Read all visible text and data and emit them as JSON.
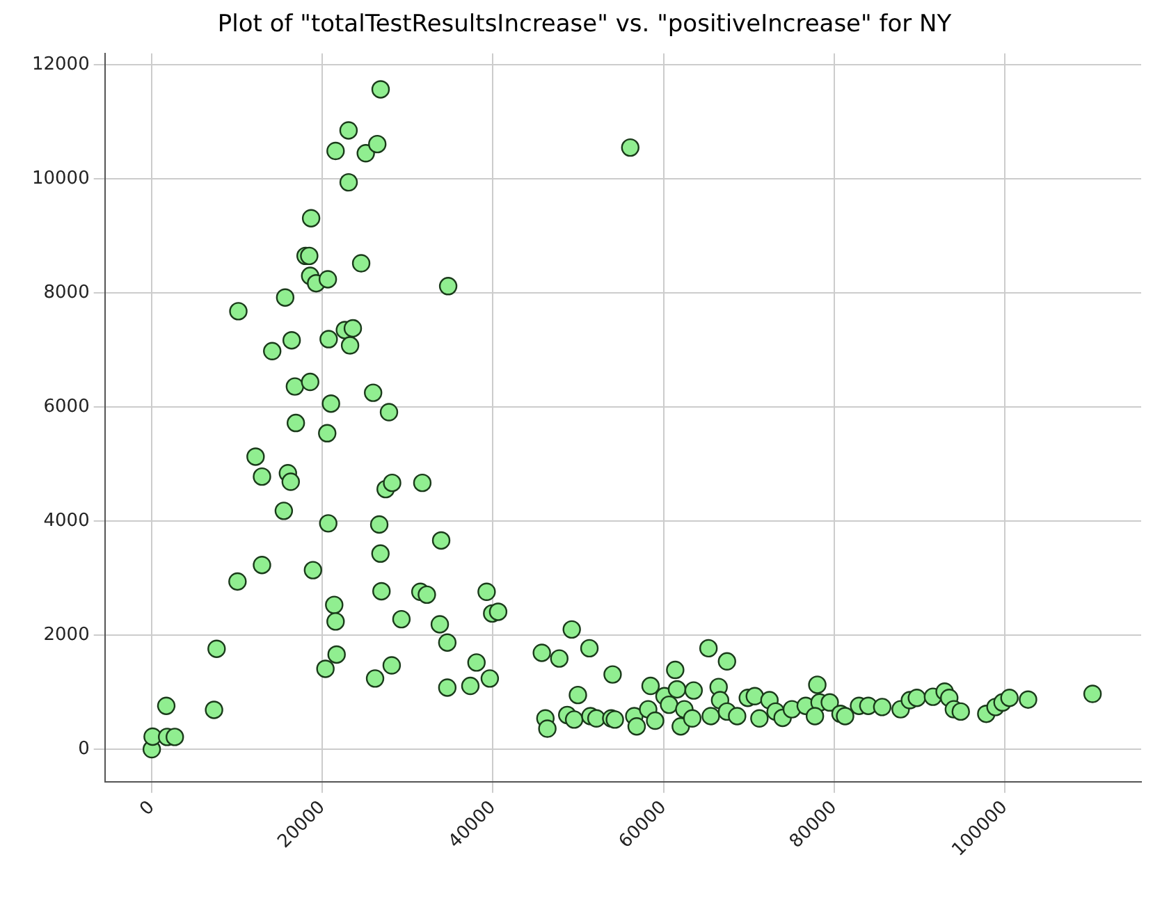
{
  "chart_data": {
    "type": "scatter",
    "title": "Plot of \"totalTestResultsIncrease\" vs. \"positiveIncrease\" for NY",
    "marker": "circle",
    "grid": true,
    "xlim": [
      -5500,
      116000
    ],
    "ylim": [
      -570,
      12200
    ],
    "xticks": [
      0,
      20000,
      40000,
      60000,
      80000,
      100000
    ],
    "yticks": [
      0,
      2000,
      4000,
      6000,
      8000,
      10000,
      12000
    ],
    "series": [
      {
        "color": "#90ee90",
        "x": [
          0,
          100,
          1700,
          1800,
          2700,
          7300,
          7600,
          16780,
          18570,
          21010,
          25950,
          27810,
          16890,
          20570,
          12170,
          12920,
          15960,
          16290,
          27420,
          28180,
          31720,
          15480,
          20690,
          26670,
          33930,
          12920,
          10050,
          18900,
          26810,
          26930,
          31490,
          32250,
          39260,
          39910,
          40610,
          21390,
          21550,
          29270,
          33770,
          34650,
          21670,
          20360,
          26180,
          28130,
          38070,
          34650,
          37350,
          39630,
          26830,
          23070,
          21550,
          25090,
          26440,
          23080,
          18680,
          18030,
          18460,
          18570,
          19270,
          20640,
          24550,
          34750,
          15640,
          10150,
          16400,
          14120,
          20740,
          22640,
          23570,
          23250,
          56100,
          45730,
          47780,
          49240,
          51310,
          54030,
          46150,
          46380,
          48710,
          49960,
          49520,
          51430,
          52130,
          53870,
          54290,
          56570,
          56850,
          58200,
          58480,
          59020,
          60110,
          60650,
          61370,
          61580,
          62020,
          62440,
          63530,
          63370,
          65270,
          67440,
          65540,
          66460,
          66630,
          67440,
          68630,
          69880,
          70700,
          71240,
          72420,
          73140,
          73960,
          75050,
          76670,
          78030,
          78290,
          77750,
          79490,
          80750,
          81290,
          82920,
          84010,
          85640,
          87800,
          88880,
          89700,
          91590,
          92960,
          93500,
          94040,
          94850,
          97840,
          98920,
          99740,
          100560,
          102740,
          110300
        ],
        "values": [
          0,
          220,
          760,
          215,
          215,
          690,
          1760,
          6360,
          6440,
          6060,
          6250,
          5910,
          5720,
          5540,
          5130,
          4780,
          4840,
          4690,
          4560,
          4670,
          4670,
          4180,
          3960,
          3940,
          3660,
          3230,
          2940,
          3140,
          3430,
          2770,
          2760,
          2710,
          2760,
          2380,
          2410,
          2530,
          2240,
          2280,
          2190,
          1870,
          1660,
          1410,
          1240,
          1470,
          1520,
          1080,
          1110,
          1240,
          11570,
          10850,
          10490,
          10450,
          10610,
          9940,
          9310,
          8650,
          8650,
          8300,
          8170,
          8240,
          8520,
          8120,
          7920,
          7680,
          7170,
          6980,
          7190,
          7350,
          7380,
          7080,
          10550,
          1690,
          1590,
          2100,
          1770,
          1310,
          540,
          360,
          600,
          950,
          520,
          580,
          540,
          540,
          520,
          580,
          400,
          700,
          1110,
          500,
          930,
          780,
          1390,
          1050,
          400,
          700,
          1030,
          540,
          1770,
          1540,
          580,
          1090,
          860,
          660,
          580,
          900,
          930,
          540,
          860,
          660,
          550,
          700,
          760,
          1130,
          820,
          580,
          820,
          620,
          580,
          760,
          760,
          740,
          700,
          860,
          900,
          920,
          1010,
          900,
          700,
          660,
          620,
          740,
          820,
          900,
          870,
          970
        ]
      }
    ]
  }
}
